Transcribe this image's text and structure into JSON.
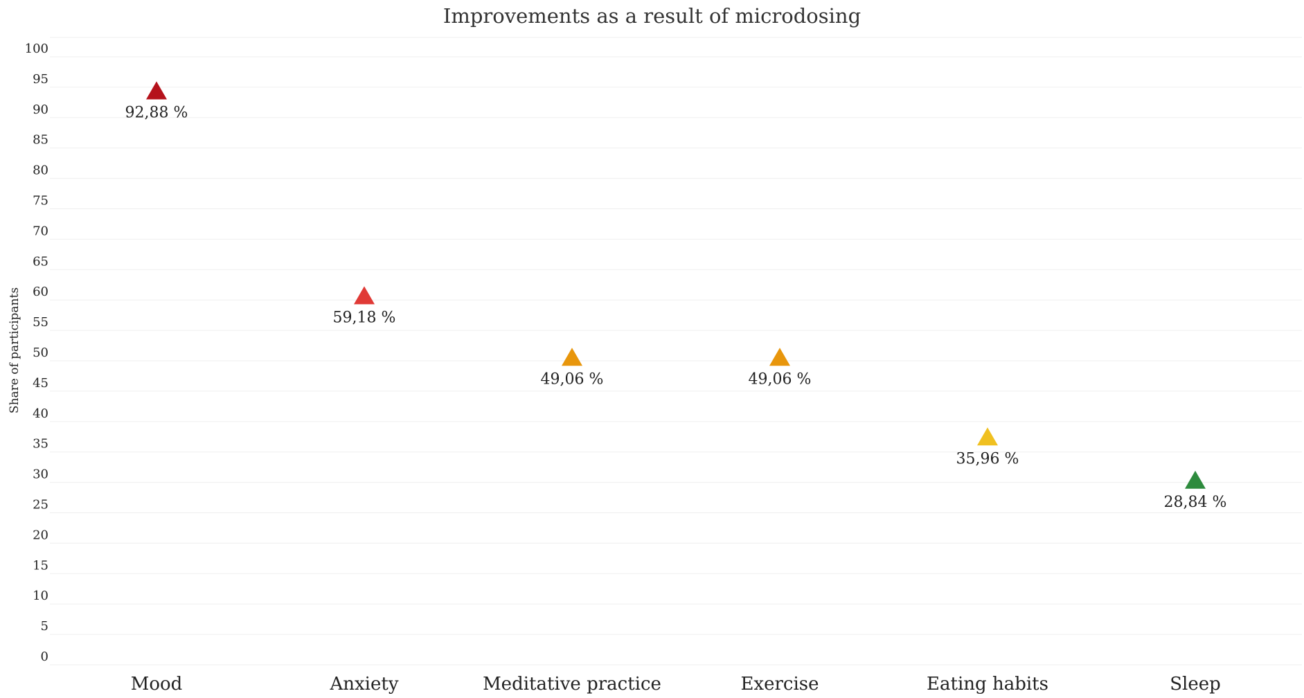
{
  "chart_data": {
    "type": "scatter",
    "title": "Improvements as a result of microdosing",
    "xlabel": "",
    "ylabel": "Share of participants",
    "ylim": [
      0,
      100
    ],
    "yticks": [
      0,
      5,
      10,
      15,
      20,
      25,
      30,
      35,
      40,
      45,
      50,
      55,
      60,
      65,
      70,
      75,
      80,
      85,
      90,
      95,
      100
    ],
    "grid": true,
    "marker": "triangle-up",
    "categories": [
      "Mood",
      "Anxiety",
      "Meditative practice",
      "Exercise",
      "Eating habits",
      "Sleep"
    ],
    "values": [
      92.88,
      59.18,
      49.06,
      49.06,
      35.96,
      28.84
    ],
    "data_labels": [
      "92,88 %",
      "59,18 %",
      "49,06 %",
      "49,06 %",
      "35,96 %",
      "28,84 %"
    ],
    "colors": [
      "#b5121b",
      "#e03a36",
      "#e8960c",
      "#e8960c",
      "#f0c020",
      "#2e8b3e"
    ]
  }
}
